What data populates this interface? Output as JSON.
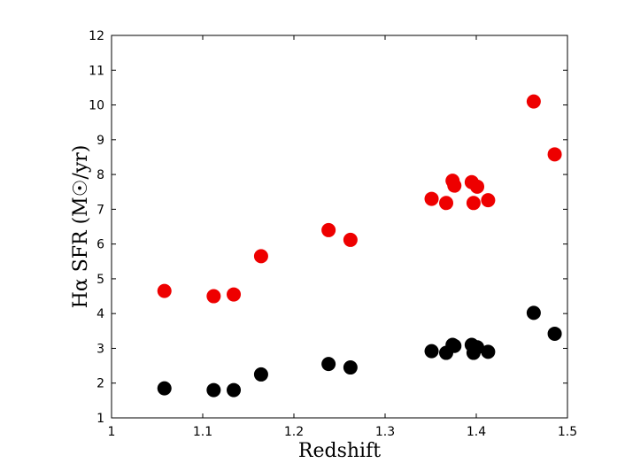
{
  "chart_data": {
    "type": "scatter",
    "title": "",
    "xlabel": "Redshift",
    "ylabel": "Hα SFR (M☉/yr)",
    "xlim": [
      1,
      1.5
    ],
    "ylim": [
      1,
      12
    ],
    "x_ticks": [
      "1",
      "1.1",
      "1.2",
      "1.3",
      "1.4",
      "1.5"
    ],
    "y_ticks": [
      "1",
      "2",
      "3",
      "4",
      "5",
      "6",
      "7",
      "8",
      "9",
      "10",
      "11",
      "12"
    ],
    "grid": false,
    "legend": "none",
    "series": [
      {
        "color": "#ee0000",
        "points": [
          {
            "x": 1.058,
            "y": 4.65
          },
          {
            "x": 1.112,
            "y": 4.5
          },
          {
            "x": 1.134,
            "y": 4.55
          },
          {
            "x": 1.164,
            "y": 5.65
          },
          {
            "x": 1.238,
            "y": 6.4
          },
          {
            "x": 1.262,
            "y": 6.12
          },
          {
            "x": 1.351,
            "y": 7.3
          },
          {
            "x": 1.367,
            "y": 7.18
          },
          {
            "x": 1.374,
            "y": 7.82
          },
          {
            "x": 1.376,
            "y": 7.68
          },
          {
            "x": 1.395,
            "y": 7.78
          },
          {
            "x": 1.397,
            "y": 7.18
          },
          {
            "x": 1.401,
            "y": 7.65
          },
          {
            "x": 1.413,
            "y": 7.26
          },
          {
            "x": 1.463,
            "y": 10.1
          },
          {
            "x": 1.486,
            "y": 8.58
          }
        ]
      },
      {
        "color": "#000000",
        "points": [
          {
            "x": 1.058,
            "y": 1.85
          },
          {
            "x": 1.112,
            "y": 1.8
          },
          {
            "x": 1.134,
            "y": 1.8
          },
          {
            "x": 1.164,
            "y": 2.25
          },
          {
            "x": 1.238,
            "y": 2.55
          },
          {
            "x": 1.262,
            "y": 2.45
          },
          {
            "x": 1.351,
            "y": 2.92
          },
          {
            "x": 1.367,
            "y": 2.87
          },
          {
            "x": 1.374,
            "y": 3.1
          },
          {
            "x": 1.376,
            "y": 3.07
          },
          {
            "x": 1.395,
            "y": 3.1
          },
          {
            "x": 1.397,
            "y": 2.87
          },
          {
            "x": 1.401,
            "y": 3.03
          },
          {
            "x": 1.413,
            "y": 2.9
          },
          {
            "x": 1.463,
            "y": 4.02
          },
          {
            "x": 1.486,
            "y": 3.42
          }
        ]
      }
    ]
  }
}
